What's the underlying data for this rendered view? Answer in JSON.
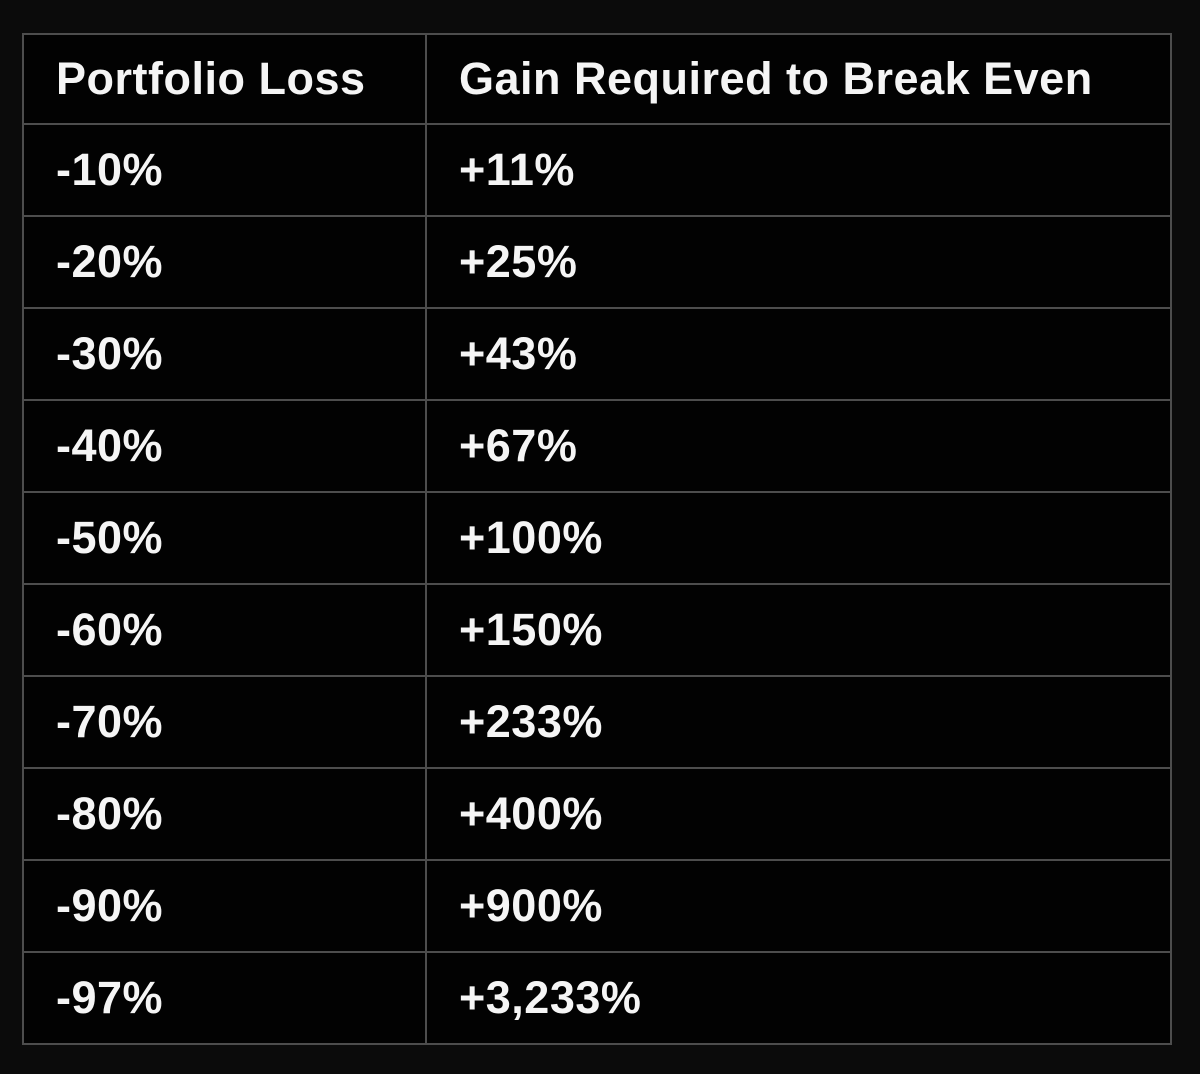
{
  "colors": {
    "page_background": "#0b0b0b",
    "table_background": "#020202",
    "border": "#4d4d4d",
    "text": "#f5f5f5"
  },
  "chart_data": {
    "type": "table",
    "title": "",
    "columns": [
      "Portfolio Loss",
      "Gain Required to Break Even"
    ],
    "rows": [
      {
        "loss": "-10%",
        "gain": "+11%"
      },
      {
        "loss": "-20%",
        "gain": "+25%"
      },
      {
        "loss": "-30%",
        "gain": "+43%"
      },
      {
        "loss": "-40%",
        "gain": "+67%"
      },
      {
        "loss": "-50%",
        "gain": "+100%"
      },
      {
        "loss": "-60%",
        "gain": "+150%"
      },
      {
        "loss": "-70%",
        "gain": "+233%"
      },
      {
        "loss": "-80%",
        "gain": "+400%"
      },
      {
        "loss": "-90%",
        "gain": "+900%"
      },
      {
        "loss": "-97%",
        "gain": "+3,233%"
      }
    ],
    "loss_values_pct": [
      -10,
      -20,
      -30,
      -40,
      -50,
      -60,
      -70,
      -80,
      -90,
      -97
    ],
    "gain_required_pct": [
      11,
      25,
      43,
      67,
      100,
      150,
      233,
      400,
      900,
      3233
    ]
  },
  "header": {
    "loss_label": "Portfolio Loss",
    "gain_label": "Gain Required to Break Even"
  }
}
